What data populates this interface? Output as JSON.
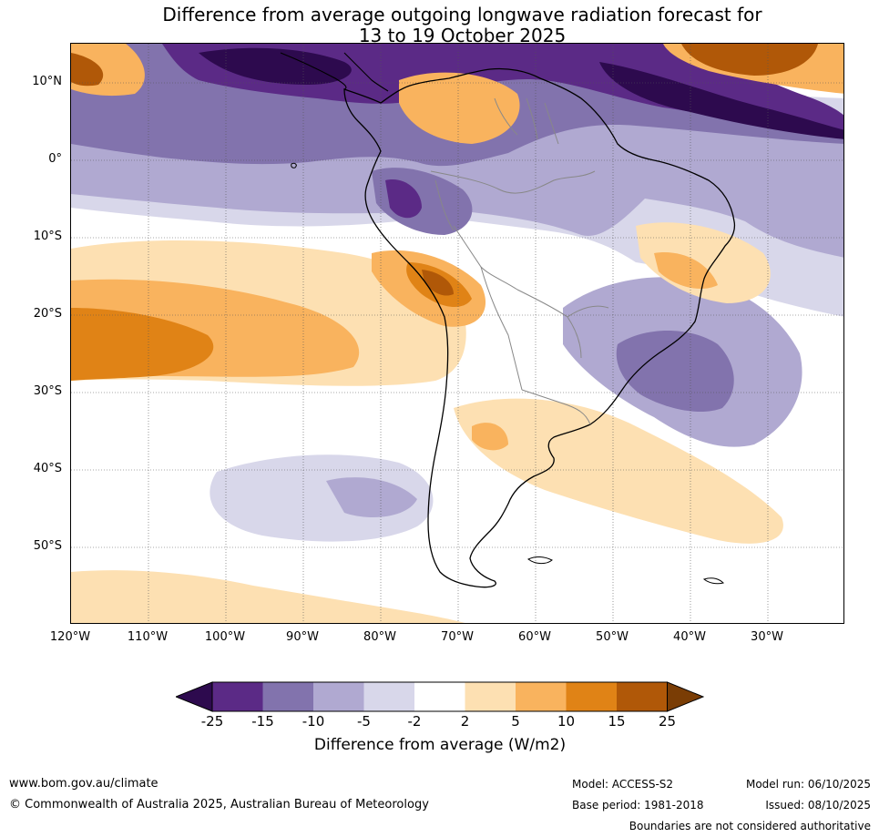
{
  "title_line1": "Difference from average outgoing longwave radiation forecast for",
  "title_line2": "13 to 19 October 2025",
  "lat_labels": [
    "10°N",
    "0°",
    "10°S",
    "20°S",
    "30°S",
    "40°S",
    "50°S"
  ],
  "lon_labels": [
    "120°W",
    "110°W",
    "100°W",
    "90°W",
    "80°W",
    "70°W",
    "60°W",
    "50°W",
    "40°W",
    "30°W"
  ],
  "colorbar": {
    "ticks": [
      "-25",
      "-15",
      "-10",
      "-5",
      "-2",
      "2",
      "5",
      "10",
      "15",
      "25"
    ],
    "colors": [
      "#2d0a4e",
      "#5b2a86",
      "#8273ad",
      "#b0a9d1",
      "#d8d7ea",
      "#ffffff",
      "#fde0b2",
      "#f9b35e",
      "#e08316",
      "#b05808",
      "#7a3d05"
    ],
    "label": "Difference from average (W/m2)"
  },
  "footer": {
    "website": "www.bom.gov.au/climate",
    "copyright": "© Commonwealth of Australia 2025, Australian Bureau of Meteorology",
    "model": "Model: ACCESS-S2",
    "base_period": "Base period: 1981-2018",
    "model_run": "Model run: 06/10/2025",
    "issued": "Issued: 08/10/2025",
    "disclaimer": "Boundaries are not considered authoritative"
  }
}
